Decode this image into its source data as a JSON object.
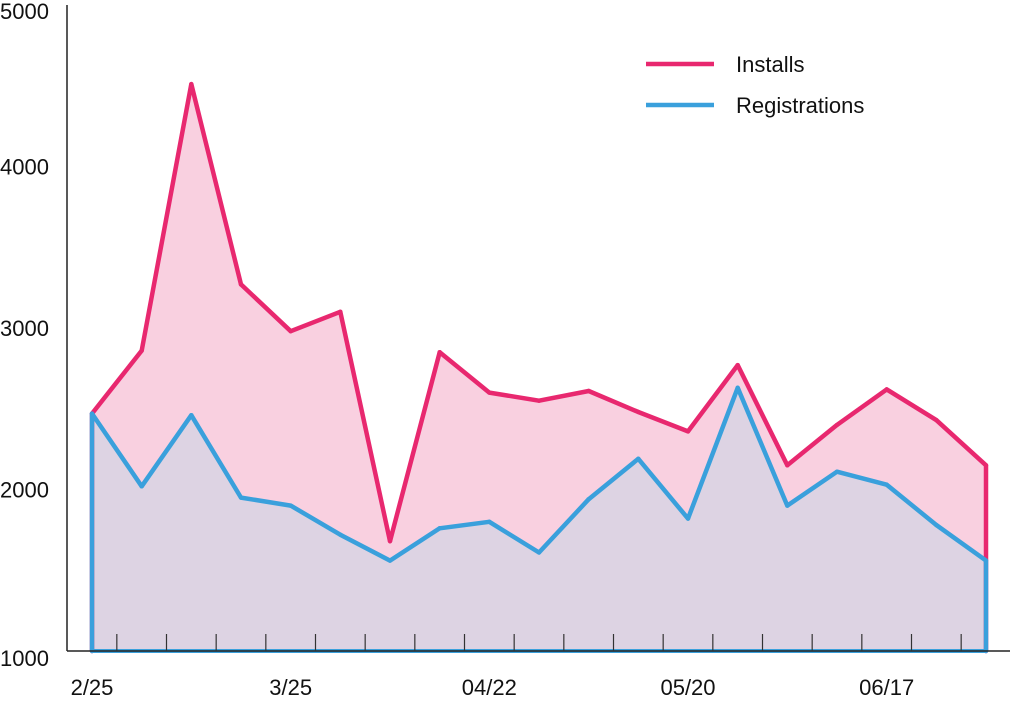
{
  "chart_data": {
    "type": "area",
    "title": "",
    "xlabel": "",
    "ylabel": "",
    "ylim": [
      1000,
      5000
    ],
    "yticks": [
      "1000",
      "2000",
      "3000",
      "4000",
      "5000"
    ],
    "xtick_labels": [
      {
        "index": 0,
        "label": "2/25"
      },
      {
        "index": 4,
        "label": "3/25"
      },
      {
        "index": 8,
        "label": "04/22"
      },
      {
        "index": 12,
        "label": "05/20"
      },
      {
        "index": 16,
        "label": "06/17"
      }
    ],
    "n_points": 19,
    "grid": false,
    "legend_position": "top-right",
    "series": [
      {
        "name": "Installs",
        "color": "#e8286f",
        "fill": "#f9d0e0",
        "values": [
          2470,
          2860,
          4510,
          3270,
          2980,
          3100,
          1680,
          2850,
          2600,
          2550,
          2610,
          2480,
          2360,
          2770,
          2150,
          2400,
          2620,
          2430,
          2150
        ]
      },
      {
        "name": "Registrations",
        "color": "#3aa0dc",
        "fill": "#ddd3e3",
        "values": [
          2470,
          2020,
          2460,
          1950,
          1900,
          1720,
          1560,
          1760,
          1800,
          1610,
          1940,
          2190,
          1820,
          2630,
          1900,
          2110,
          2030,
          1780,
          1560
        ]
      }
    ]
  }
}
